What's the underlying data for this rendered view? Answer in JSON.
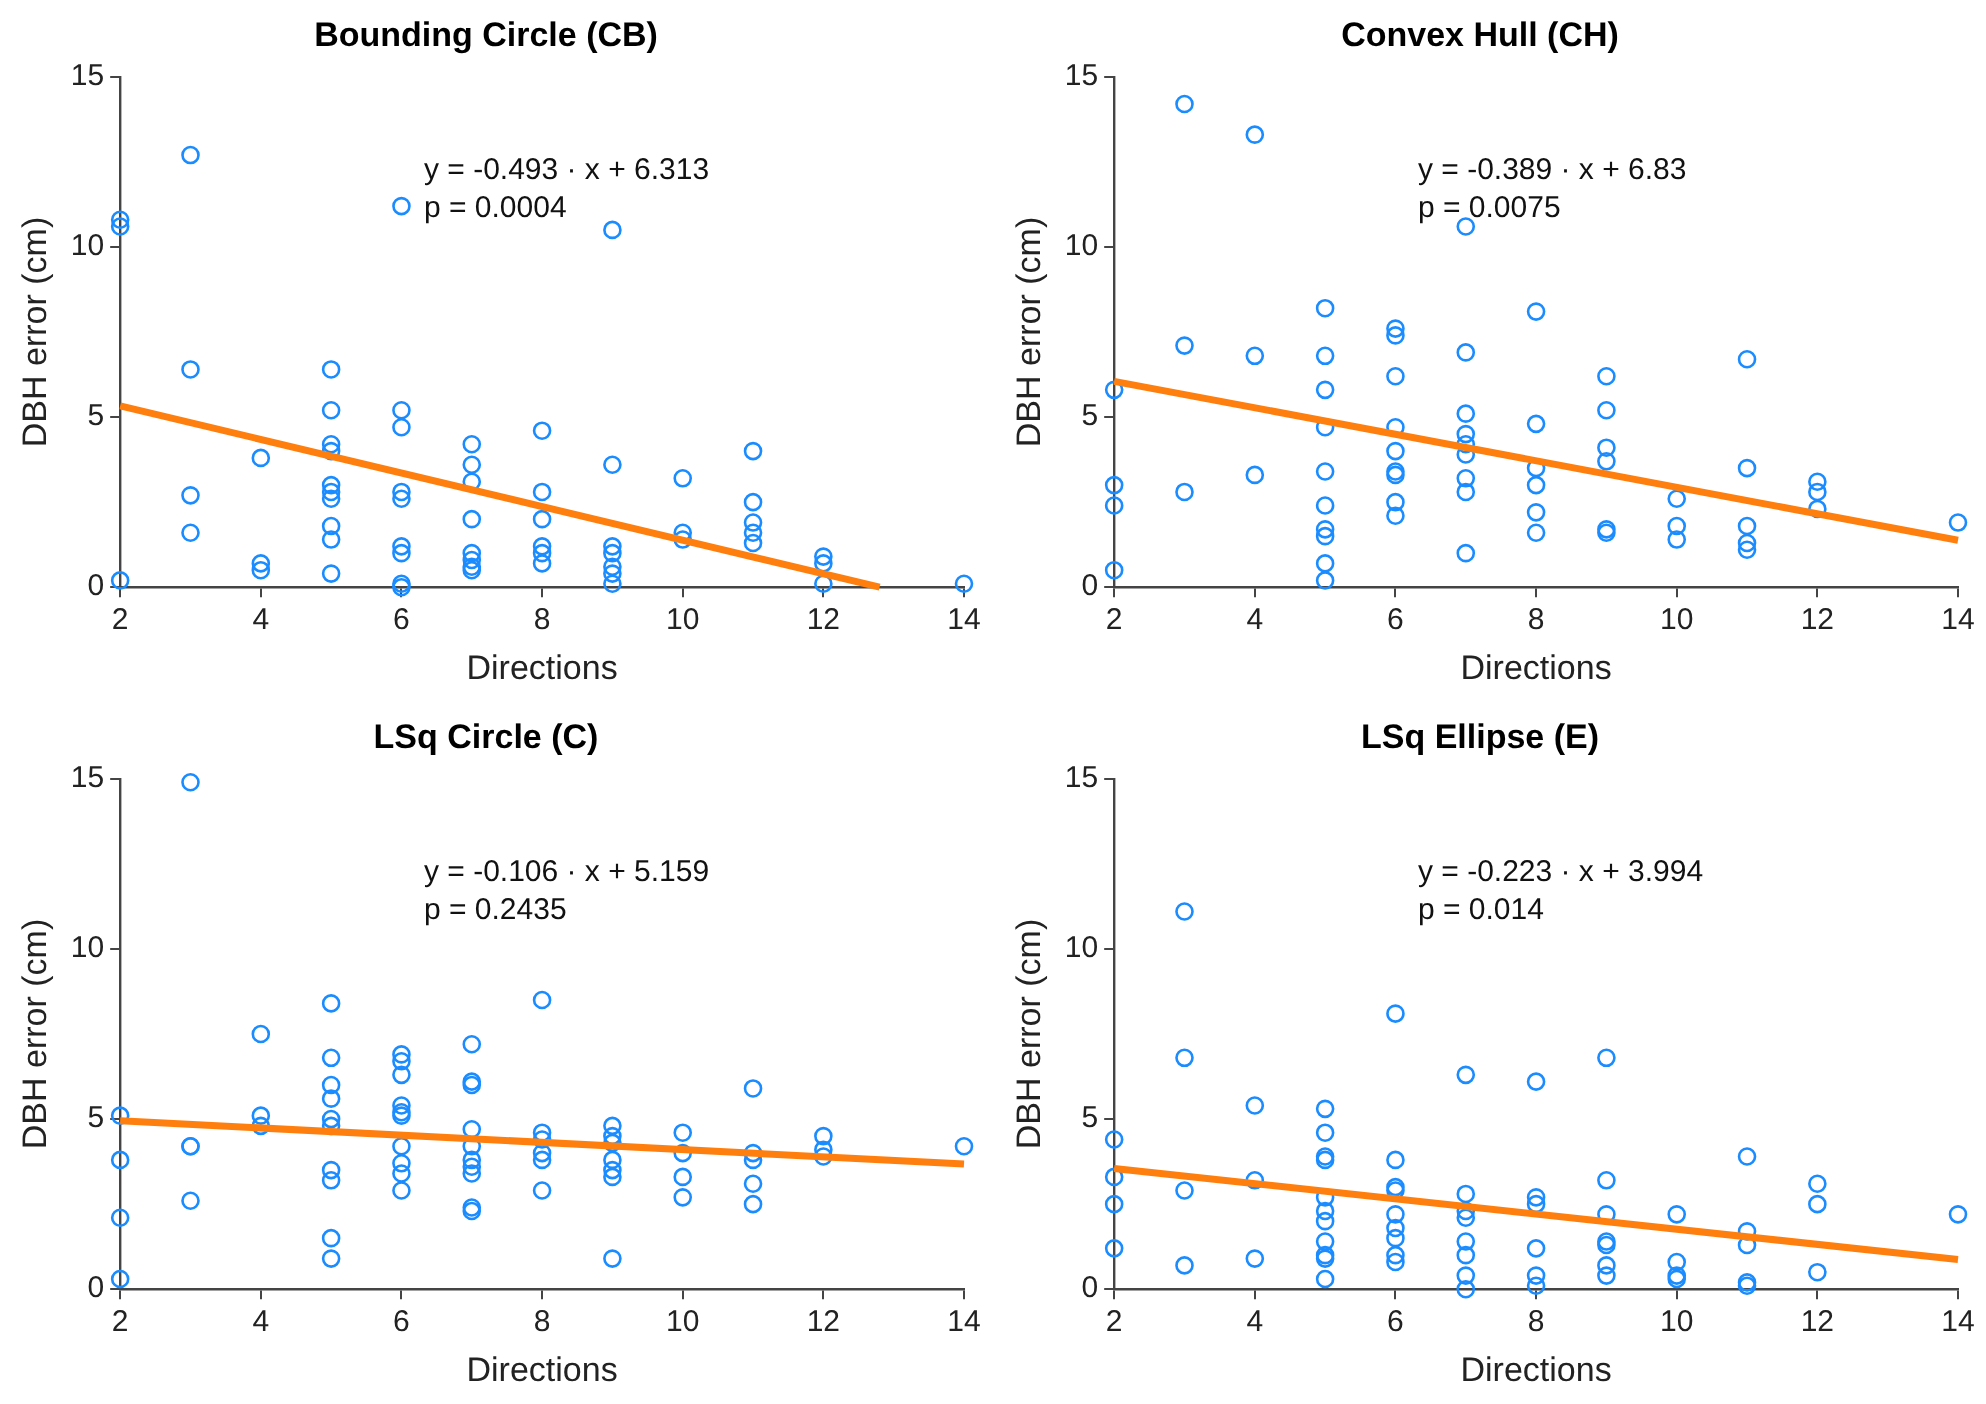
{
  "chart_data": [
    {
      "type": "scatter",
      "title": "Bounding Circle (CB)",
      "xlabel": "Directions",
      "ylabel": "DBH error (cm)",
      "xlim": [
        2,
        14
      ],
      "xticks": [
        2,
        4,
        6,
        8,
        10,
        12,
        14
      ],
      "ylim": [
        0,
        15
      ],
      "yticks": [
        0,
        5,
        10,
        15
      ],
      "grid": false,
      "legend": false,
      "annotations": [
        "y = -0.493 · x + 6.313",
        "p = 0.0004"
      ],
      "series": [
        {
          "marker": "circle",
          "color": "#1a8cff",
          "x": [
            2,
            2,
            2,
            3,
            3,
            3,
            3,
            4,
            4,
            4,
            5,
            5,
            5,
            5,
            5,
            5,
            5,
            5,
            5,
            5,
            6,
            6,
            6,
            6,
            6,
            6,
            6,
            6,
            6,
            7,
            7,
            7,
            7,
            7,
            7,
            7,
            7,
            8,
            8,
            8,
            8,
            8,
            8,
            9,
            9,
            9,
            9,
            9,
            9,
            9,
            10,
            10,
            10,
            11,
            11,
            11,
            11,
            11,
            12,
            12,
            12,
            14
          ],
          "values": [
            10.8,
            10.6,
            0.2,
            12.7,
            6.4,
            2.7,
            1.6,
            3.8,
            0.7,
            0.5,
            6.4,
            5.2,
            4.2,
            4.0,
            3.0,
            2.8,
            2.6,
            1.8,
            1.4,
            0.4,
            11.2,
            5.2,
            4.7,
            2.8,
            2.6,
            1.2,
            1.0,
            0.1,
            0.0,
            4.2,
            3.6,
            3.1,
            2.0,
            1.0,
            0.8,
            0.6,
            0.5,
            4.6,
            2.8,
            2.0,
            1.2,
            1.0,
            0.7,
            10.5,
            3.6,
            1.2,
            1.0,
            0.6,
            0.4,
            0.1,
            3.2,
            1.6,
            1.4,
            4.0,
            2.5,
            1.9,
            1.6,
            1.3,
            0.9,
            0.7,
            0.1,
            0.1
          ]
        },
        {
          "type": "line",
          "marker": "none",
          "color": "#ff7f0e",
          "x": [
            2,
            12.8
          ],
          "values": [
            5.33,
            0
          ]
        }
      ]
    },
    {
      "type": "scatter",
      "title": "Convex Hull (CH)",
      "xlabel": "Directions",
      "ylabel": "DBH error (cm)",
      "xlim": [
        2,
        14
      ],
      "xticks": [
        2,
        4,
        6,
        8,
        10,
        12,
        14
      ],
      "ylim": [
        0,
        15
      ],
      "yticks": [
        0,
        5,
        10,
        15
      ],
      "grid": false,
      "legend": false,
      "annotations": [
        "y = -0.389 · x + 6.83",
        "p = 0.0075"
      ],
      "series": [
        {
          "marker": "circle",
          "color": "#1a8cff",
          "x": [
            2,
            2,
            2,
            2,
            3,
            3,
            3,
            4,
            4,
            4,
            5,
            5,
            5,
            5,
            5,
            5,
            5,
            5,
            5,
            5,
            6,
            6,
            6,
            6,
            6,
            6,
            6,
            6,
            6,
            7,
            7,
            7,
            7,
            7,
            7,
            7,
            7,
            7,
            8,
            8,
            8,
            8,
            8,
            8,
            9,
            9,
            9,
            9,
            9,
            9,
            10,
            10,
            10,
            11,
            11,
            11,
            11,
            11,
            12,
            12,
            12,
            14
          ],
          "values": [
            5.8,
            3.0,
            2.4,
            0.5,
            14.2,
            7.1,
            2.8,
            13.3,
            6.8,
            3.3,
            8.2,
            6.8,
            5.8,
            4.7,
            3.4,
            2.4,
            1.7,
            1.5,
            0.7,
            0.2,
            7.6,
            7.4,
            6.2,
            4.7,
            4.0,
            3.4,
            3.3,
            2.5,
            2.1,
            10.6,
            6.9,
            5.1,
            4.5,
            4.2,
            3.9,
            3.2,
            2.8,
            1.0,
            8.1,
            4.8,
            3.5,
            3.0,
            2.2,
            1.6,
            6.2,
            5.2,
            4.1,
            3.7,
            1.7,
            1.6,
            2.6,
            1.8,
            1.4,
            6.7,
            3.5,
            1.8,
            1.3,
            1.1,
            3.1,
            2.8,
            2.3,
            1.9
          ]
        },
        {
          "type": "line",
          "marker": "none",
          "color": "#ff7f0e",
          "x": [
            2,
            14
          ],
          "values": [
            6.05,
            1.38
          ]
        }
      ]
    },
    {
      "type": "scatter",
      "title": "LSq Circle (C)",
      "xlabel": "Directions",
      "ylabel": "DBH error (cm)",
      "xlim": [
        2,
        14
      ],
      "xticks": [
        2,
        4,
        6,
        8,
        10,
        12,
        14
      ],
      "ylim": [
        0,
        15
      ],
      "yticks": [
        0,
        5,
        10,
        15
      ],
      "grid": false,
      "legend": false,
      "annotations": [
        "y = -0.106 · x + 5.159",
        "p = 0.2435"
      ],
      "series": [
        {
          "marker": "circle",
          "color": "#1a8cff",
          "x": [
            2,
            2,
            2,
            2,
            3,
            3,
            3,
            3,
            4,
            4,
            4,
            5,
            5,
            5,
            5,
            5,
            5,
            5,
            5,
            5,
            5,
            6,
            6,
            6,
            6,
            6,
            6,
            6,
            6,
            6,
            6,
            7,
            7,
            7,
            7,
            7,
            7,
            7,
            7,
            7,
            7,
            8,
            8,
            8,
            8,
            8,
            8,
            9,
            9,
            9,
            9,
            9,
            9,
            9,
            10,
            10,
            10,
            10,
            11,
            11,
            11,
            11,
            11,
            12,
            12,
            12,
            14
          ],
          "values": [
            5.1,
            3.8,
            2.1,
            0.3,
            14.9,
            4.2,
            4.2,
            2.6,
            7.5,
            5.1,
            4.8,
            8.4,
            6.8,
            6.0,
            5.6,
            5.0,
            4.8,
            3.5,
            3.2,
            1.5,
            0.9,
            6.9,
            6.7,
            6.3,
            5.4,
            5.2,
            5.1,
            4.2,
            3.7,
            3.4,
            2.9,
            7.2,
            6.1,
            6.0,
            4.7,
            4.2,
            3.8,
            3.6,
            3.4,
            2.4,
            2.3,
            8.5,
            4.6,
            4.4,
            4.0,
            3.8,
            2.9,
            4.8,
            4.5,
            4.3,
            3.8,
            3.5,
            3.3,
            0.9,
            4.6,
            4.0,
            3.3,
            2.7,
            5.9,
            4.0,
            3.8,
            3.1,
            2.5,
            4.5,
            4.1,
            3.9,
            4.2
          ]
        },
        {
          "type": "line",
          "marker": "none",
          "color": "#ff7f0e",
          "x": [
            2,
            14
          ],
          "values": [
            4.95,
            3.68
          ]
        }
      ]
    },
    {
      "type": "scatter",
      "title": "LSq Ellipse (E)",
      "xlabel": "Directions",
      "ylabel": "DBH error (cm)",
      "xlim": [
        2,
        14
      ],
      "xticks": [
        2,
        4,
        6,
        8,
        10,
        12,
        14
      ],
      "ylim": [
        0,
        15
      ],
      "yticks": [
        0,
        5,
        10,
        15
      ],
      "grid": false,
      "legend": false,
      "annotations": [
        "y = -0.223 · x + 3.994",
        "p = 0.014"
      ],
      "series": [
        {
          "marker": "circle",
          "color": "#1a8cff",
          "x": [
            2,
            2,
            2,
            2,
            3,
            3,
            3,
            3,
            4,
            4,
            4,
            5,
            5,
            5,
            5,
            5,
            5,
            5,
            5,
            5,
            5,
            5,
            6,
            6,
            6,
            6,
            6,
            6,
            6,
            6,
            6,
            7,
            7,
            7,
            7,
            7,
            7,
            7,
            7,
            8,
            8,
            8,
            8,
            8,
            8,
            9,
            9,
            9,
            9,
            9,
            9,
            9,
            10,
            10,
            10,
            10,
            11,
            11,
            11,
            11,
            11,
            12,
            12,
            12,
            14
          ],
          "values": [
            4.4,
            3.3,
            2.5,
            1.2,
            11.1,
            6.8,
            2.9,
            0.7,
            5.4,
            3.2,
            0.9,
            5.3,
            4.6,
            3.9,
            3.8,
            2.7,
            2.3,
            2.0,
            1.4,
            1.0,
            0.9,
            0.3,
            8.1,
            3.8,
            3.0,
            2.9,
            2.2,
            1.8,
            1.5,
            1.0,
            0.8,
            6.3,
            2.8,
            2.3,
            2.1,
            1.4,
            1.0,
            0.4,
            0.0,
            6.1,
            2.7,
            2.5,
            1.2,
            0.4,
            0.1,
            6.8,
            3.2,
            2.2,
            1.4,
            1.3,
            0.7,
            0.4,
            2.2,
            0.8,
            0.4,
            0.3,
            3.9,
            1.7,
            1.3,
            0.2,
            0.1,
            3.1,
            2.5,
            0.5,
            2.2
          ]
        },
        {
          "type": "line",
          "marker": "none",
          "color": "#ff7f0e",
          "x": [
            2,
            14
          ],
          "values": [
            3.55,
            0.87
          ]
        }
      ]
    }
  ]
}
